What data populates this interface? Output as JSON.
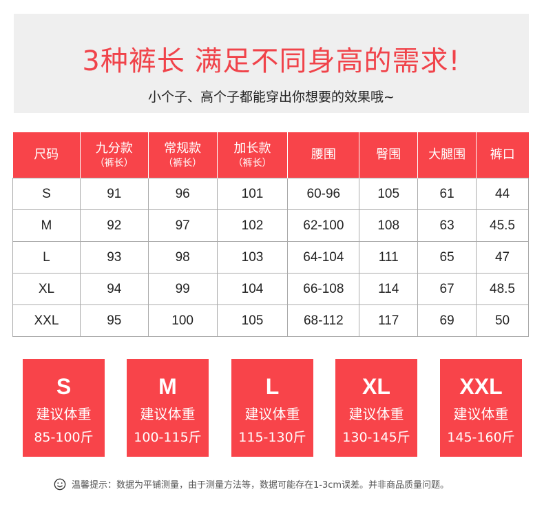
{
  "banner": {
    "title": "3种裤长 满足不同身高的需求!",
    "subtitle": "小个子、高个子都能穿出你想要的效果哦~"
  },
  "table": {
    "headers": [
      {
        "main": "尺码",
        "sub": ""
      },
      {
        "main": "九分款",
        "sub": "（裤长）"
      },
      {
        "main": "常规款",
        "sub": "（裤长）"
      },
      {
        "main": "加长款",
        "sub": "（裤长）"
      },
      {
        "main": "腰围",
        "sub": ""
      },
      {
        "main": "臀围",
        "sub": ""
      },
      {
        "main": "大腿围",
        "sub": ""
      },
      {
        "main": "裤口",
        "sub": ""
      }
    ],
    "rows": [
      [
        "S",
        "91",
        "96",
        "101",
        "60-96",
        "105",
        "61",
        "44"
      ],
      [
        "M",
        "92",
        "97",
        "102",
        "62-100",
        "108",
        "63",
        "45.5"
      ],
      [
        "L",
        "93",
        "98",
        "103",
        "64-104",
        "111",
        "65",
        "47"
      ],
      [
        "XL",
        "94",
        "99",
        "104",
        "66-108",
        "114",
        "67",
        "48.5"
      ],
      [
        "XXL",
        "95",
        "100",
        "105",
        "68-112",
        "117",
        "69",
        "50"
      ]
    ]
  },
  "cards": [
    {
      "size": "S",
      "label": "建议体重",
      "weight": "85-100斤"
    },
    {
      "size": "M",
      "label": "建议体重",
      "weight": "100-115斤"
    },
    {
      "size": "L",
      "label": "建议体重",
      "weight": "115-130斤"
    },
    {
      "size": "XL",
      "label": "建议体重",
      "weight": "130-145斤"
    },
    {
      "size": "XXL",
      "label": "建议体重",
      "weight": "145-160斤"
    }
  ],
  "note": {
    "icon": "smiley-icon",
    "text": "温馨提示：数据为平铺测量，由于测量方法等，数据可能存在1-3cm误差。并非商品质量问题。"
  },
  "colors": {
    "accent": "#f8444a",
    "banner_bg": "#efefef"
  }
}
